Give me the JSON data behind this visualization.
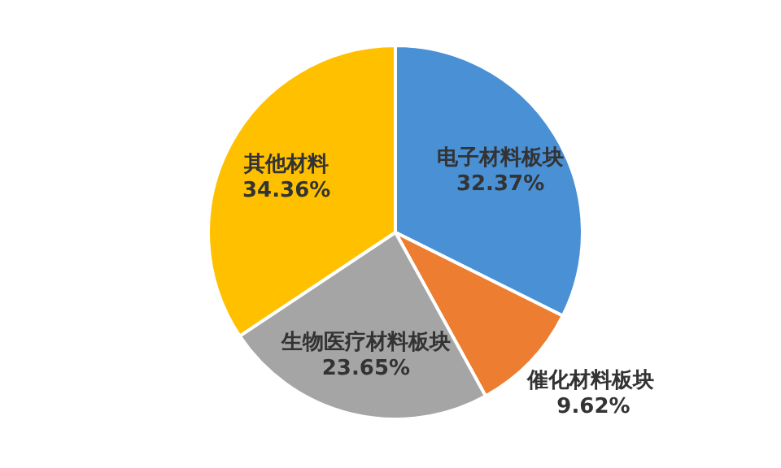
{
  "chart_data": {
    "type": "pie",
    "categories": [
      "电子材料板块",
      "催化材料板块",
      "生物医疗材料板块",
      "其他材料"
    ],
    "values": [
      32.37,
      9.62,
      23.65,
      34.36
    ],
    "colors": [
      "#4a90d4",
      "#ed7d31",
      "#a5a5a5",
      "#ffc000"
    ],
    "value_labels": [
      "32.37%",
      "9.62%",
      "23.65%",
      "34.36%"
    ]
  }
}
